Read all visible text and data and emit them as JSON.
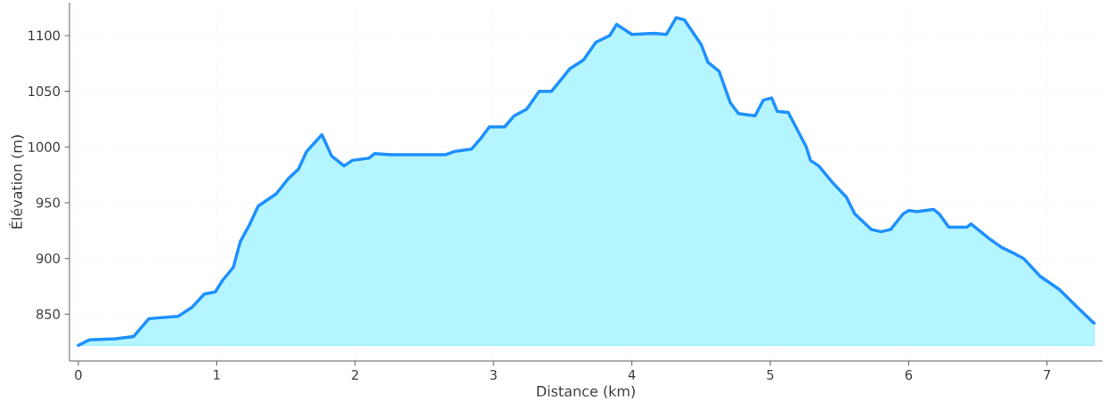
{
  "chart_data": {
    "type": "area",
    "xlabel": "Distance (km)",
    "ylabel": "Élévation (m)",
    "x": [
      0,
      0.08,
      0.27,
      0.4,
      0.51,
      0.72,
      0.82,
      0.91,
      0.99,
      1.04,
      1.12,
      1.17,
      1.24,
      1.3,
      1.43,
      1.52,
      1.59,
      1.65,
      1.76,
      1.83,
      1.92,
      1.98,
      2.1,
      2.14,
      2.26,
      2.65,
      2.72,
      2.84,
      2.91,
      2.97,
      3.08,
      3.15,
      3.24,
      3.33,
      3.42,
      3.55,
      3.65,
      3.74,
      3.84,
      3.89,
      4.0,
      4.16,
      4.25,
      4.32,
      4.38,
      4.5,
      4.55,
      4.63,
      4.71,
      4.77,
      4.89,
      4.95,
      5.01,
      5.05,
      5.13,
      5.26,
      5.29,
      5.35,
      5.45,
      5.55,
      5.61,
      5.73,
      5.8,
      5.87,
      5.96,
      6.0,
      6.06,
      6.18,
      6.22,
      6.29,
      6.42,
      6.45,
      6.58,
      6.67,
      6.77,
      6.83,
      6.95,
      7.09,
      7.22,
      7.32,
      7.34
    ],
    "series": [
      {
        "color": "#1e90ff",
        "values": [
          822,
          827,
          828,
          830,
          846,
          848,
          856,
          868,
          870,
          880,
          892,
          915,
          931,
          947,
          958,
          972,
          980,
          996,
          1011,
          992,
          983,
          988,
          990,
          994,
          993,
          993,
          996,
          998,
          1008,
          1018,
          1018,
          1028,
          1034,
          1050,
          1050,
          1070,
          1078,
          1094,
          1100,
          1110,
          1101,
          1102,
          1101,
          1116,
          1114,
          1092,
          1076,
          1068,
          1040,
          1030,
          1028,
          1042,
          1044,
          1032,
          1031,
          1000,
          988,
          983,
          968,
          955,
          940,
          926,
          924,
          926,
          940,
          943,
          942,
          944,
          940,
          928,
          928,
          931,
          918,
          910,
          904,
          900,
          884,
          872,
          856,
          844,
          842
        ]
      }
    ],
    "xlim": [
      -0.064,
      7.4
    ],
    "ylim": [
      808,
      1129.5
    ],
    "xticks": [
      0,
      1,
      2,
      3,
      4,
      5,
      6,
      7
    ],
    "yticks": [
      850,
      900,
      950,
      1000,
      1050,
      1100
    ],
    "grid": true,
    "marker": "none",
    "line_style": "solid"
  }
}
